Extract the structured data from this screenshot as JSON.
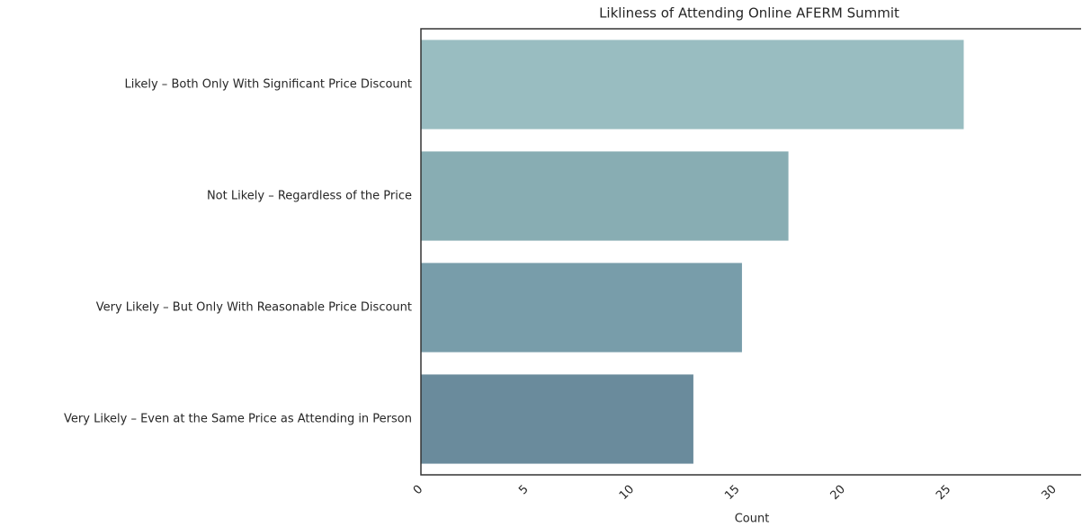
{
  "chart_data": {
    "type": "barh",
    "title": "Likliness of Attending Online AFERM Summit",
    "x_label": "Count",
    "categories": [
      "Likely – Both Only With Significant Price Discount",
      "Not Likely – Regardless of the Price",
      "Very Likely – But Only With Reasonable Price Discount",
      "Very Likely – Even at the Same Price as Attending in Person"
    ],
    "values": [
      25.7,
      17.4,
      15.2,
      12.9
    ],
    "colors": [
      "#99bdc1",
      "#88adb3",
      "#789daa",
      "#6a8b9c"
    ],
    "xlim": [
      0,
      31.3
    ],
    "xticks": [
      0,
      5,
      10,
      15,
      20,
      25,
      30
    ],
    "grid": false
  }
}
